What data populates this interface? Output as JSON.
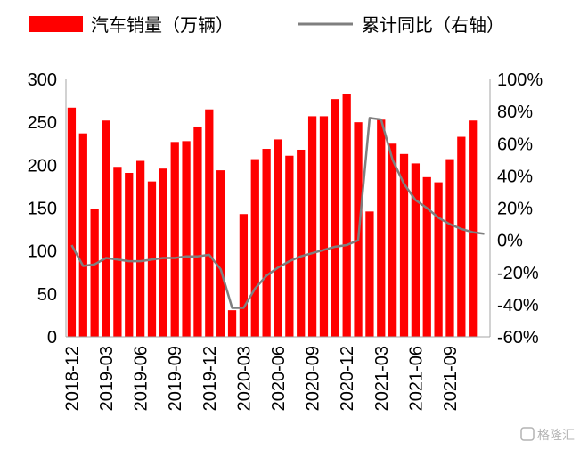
{
  "chart_data": {
    "type": "bar+line",
    "legend": {
      "bar_label": "汽车销量（万辆）",
      "line_label": "累计同比（右轴）",
      "placement": "top"
    },
    "x": [
      "2018-12",
      "2019-01",
      "2019-02",
      "2019-03",
      "2019-04",
      "2019-05",
      "2019-06",
      "2019-07",
      "2019-08",
      "2019-09",
      "2019-10",
      "2019-11",
      "2019-12",
      "2020-01",
      "2020-02",
      "2020-03",
      "2020-04",
      "2020-05",
      "2020-06",
      "2020-07",
      "2020-08",
      "2020-09",
      "2020-10",
      "2020-11",
      "2020-12",
      "2021-01",
      "2021-02",
      "2021-03",
      "2021-04",
      "2021-05",
      "2021-06",
      "2021-07",
      "2021-08",
      "2021-09",
      "2021-10",
      "2021-11",
      "2021-12"
    ],
    "x_tick_labels": [
      "2018-12",
      "2019-03",
      "2019-06",
      "2019-09",
      "2019-12",
      "2020-03",
      "2020-06",
      "2020-09",
      "2020-12",
      "2021-03",
      "2021-06",
      "2021-09"
    ],
    "series": [
      {
        "name": "汽车销量（万辆）",
        "axis": "left",
        "type": "bar",
        "color": "#ff0000",
        "values": [
          267,
          237,
          149,
          252,
          198,
          191,
          205,
          181,
          196,
          227,
          228,
          245,
          265,
          194,
          31,
          143,
          207,
          219,
          230,
          211,
          218,
          257,
          257,
          277,
          283,
          250,
          146,
          253,
          225,
          213,
          202,
          186,
          180,
          207,
          233,
          252,
          0
        ]
      },
      {
        "name": "累计同比（右轴）",
        "axis": "right",
        "type": "line",
        "color": "#7f7f7f",
        "values": [
          -3,
          -16,
          -15,
          -11,
          -12,
          -13,
          -13,
          -12,
          -11,
          -11,
          -10,
          -10,
          -9,
          -18,
          -42,
          -42,
          -30,
          -22,
          -17,
          -13,
          -10,
          -8,
          -6,
          -4,
          -3,
          0,
          76,
          75,
          50,
          35,
          25,
          20,
          14,
          10,
          7,
          5,
          4
        ]
      }
    ],
    "y_left": {
      "min": 0,
      "max": 300,
      "ticks": [
        "0",
        "50",
        "100",
        "150",
        "200",
        "250",
        "300"
      ]
    },
    "y_right": {
      "min": -60,
      "max": 100,
      "ticks": [
        "-60%",
        "-40%",
        "-20%",
        "0%",
        "20%",
        "40%",
        "60%",
        "80%",
        "100%"
      ]
    }
  },
  "watermark": {
    "text": "格隆汇"
  }
}
